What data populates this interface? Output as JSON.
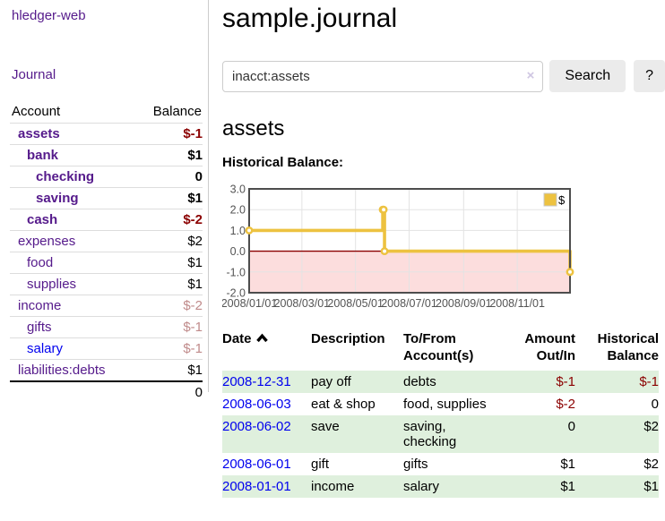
{
  "app": {
    "title": "hledger-web"
  },
  "colors": {
    "link_purple": "#551a8b",
    "link_blue": "#0000ee",
    "negative_strong": "#8b0000",
    "negative_light": "#c08b8b",
    "row_green": "#dff0dd",
    "button_bg": "#ebebeb",
    "chart_line": "#edc240"
  },
  "sidebar": {
    "nav_journal": "Journal",
    "accounts": {
      "col_account": "Account",
      "col_balance": "Balance",
      "rows": [
        {
          "name": "assets",
          "balance": "$-1"
        },
        {
          "name": "bank",
          "balance": "$1"
        },
        {
          "name": "checking",
          "balance": "0"
        },
        {
          "name": "saving",
          "balance": "$1"
        },
        {
          "name": "cash",
          "balance": "$-2"
        },
        {
          "name": "expenses",
          "balance": "$2"
        },
        {
          "name": "food",
          "balance": "$1"
        },
        {
          "name": "supplies",
          "balance": "$1"
        },
        {
          "name": "income",
          "balance": "$-2"
        },
        {
          "name": "gifts",
          "balance": "$-1"
        },
        {
          "name": "salary",
          "balance": "$-1"
        },
        {
          "name": "liabilities:debts",
          "balance": "$1"
        }
      ],
      "total": "0"
    }
  },
  "main": {
    "title": "sample.journal",
    "search": {
      "value": "inacct:assets",
      "clear": "×",
      "search_button": "Search",
      "help_button": "?"
    },
    "heading": "assets",
    "chart_heading": "Historical Balance:",
    "register": {
      "headers": {
        "date": "Date",
        "description": "Description",
        "account": "To/From Account(s)",
        "amount": "Amount Out/In",
        "balance": "Historical Balance"
      },
      "rows": [
        {
          "date": "2008-12-31",
          "description": "pay off",
          "account": "debts",
          "amount": "$-1",
          "balance": "$-1"
        },
        {
          "date": "2008-06-03",
          "description": "eat & shop",
          "account": "food, supplies",
          "amount": "$-2",
          "balance": "0"
        },
        {
          "date": "2008-06-02",
          "description": "save",
          "account": "saving, checking",
          "amount": "0",
          "balance": "$2"
        },
        {
          "date": "2008-06-01",
          "description": "gift",
          "account": "gifts",
          "amount": "$1",
          "balance": "$2"
        },
        {
          "date": "2008-01-01",
          "description": "income",
          "account": "salary",
          "amount": "$1",
          "balance": "$1"
        }
      ]
    }
  },
  "chart_data": {
    "type": "line",
    "title": "Historical Balance",
    "step": true,
    "series": [
      {
        "name": "$",
        "color": "#edc240",
        "points": [
          {
            "x": "2008-01-01",
            "y": 1
          },
          {
            "x": "2008-06-01",
            "y": 2
          },
          {
            "x": "2008-06-02",
            "y": 2
          },
          {
            "x": "2008-06-03",
            "y": 0
          },
          {
            "x": "2008-12-31",
            "y": -1
          }
        ]
      }
    ],
    "xticks": [
      "2008/01/01",
      "2008/03/01",
      "2008/05/01",
      "2008/07/01",
      "2008/09/01",
      "2008/11/01"
    ],
    "yticks": [
      3.0,
      2.0,
      1.0,
      0.0,
      -1.0,
      -2.0
    ],
    "ylim": [
      -2,
      3
    ],
    "xlim_days": [
      0,
      365
    ],
    "x_epoch": "2008-01-01",
    "grid": true,
    "negative_region_color": "#fcdddd",
    "zero_line_color": "#8b0000",
    "legend": {
      "label": "$",
      "position": "top-right"
    }
  }
}
